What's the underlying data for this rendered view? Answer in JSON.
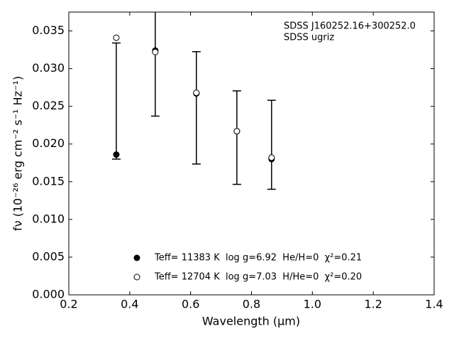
{
  "chart_data": {
    "type": "scatter",
    "annotations": [
      "SDSS J160252.16+300252.0",
      "SDSS ugriz"
    ],
    "xlabel": "Wavelength (μm)",
    "ylabel": "fν (10⁻²⁶ erg cm⁻² s⁻¹ Hz⁻¹)",
    "xlim": [
      0.2,
      1.4
    ],
    "xticks": [
      0.2,
      0.4,
      0.6,
      0.8,
      {
        "value": 1,
        "label": "1.0"
      },
      1.2,
      1.4
    ],
    "ylim": [
      0,
      0.0375
    ],
    "yticks": [
      {
        "value": 0,
        "label": "0.000"
      },
      0.005,
      {
        "value": 0.01,
        "label": "0.010"
      },
      0.015,
      {
        "value": 0.02,
        "label": "0.020"
      },
      0.025,
      {
        "value": 0.03,
        "label": "0.030"
      },
      0.035
    ],
    "errorbars": {
      "color": "#000000",
      "x": [
        0.356,
        0.484,
        0.619,
        0.752,
        0.866
      ],
      "values": [
        0.0257,
        0.0325,
        0.0248,
        0.02085,
        0.0199
      ],
      "errors": [
        0.0077,
        0.0088,
        0.00745,
        0.0062,
        0.0059
      ]
    },
    "series": [
      {
        "name": "Teff= 11383 K  log g=6.92  He/H=0  χ²=0.21",
        "color": "#000000",
        "filled": true,
        "x": [
          0.356,
          0.484,
          0.619,
          0.752,
          0.866
        ],
        "values": [
          0.0186,
          0.0324,
          0.0267,
          0.0217,
          0.018
        ]
      },
      {
        "name": "Teff= 12704 K  log g=7.03  H/He=0  χ²=0.20",
        "color": "#000000",
        "filled": false,
        "x": [
          0.356,
          0.484,
          0.619,
          0.752,
          0.866
        ],
        "values": [
          0.0341,
          0.0322,
          0.0268,
          0.0217,
          0.0182
        ]
      }
    ]
  }
}
